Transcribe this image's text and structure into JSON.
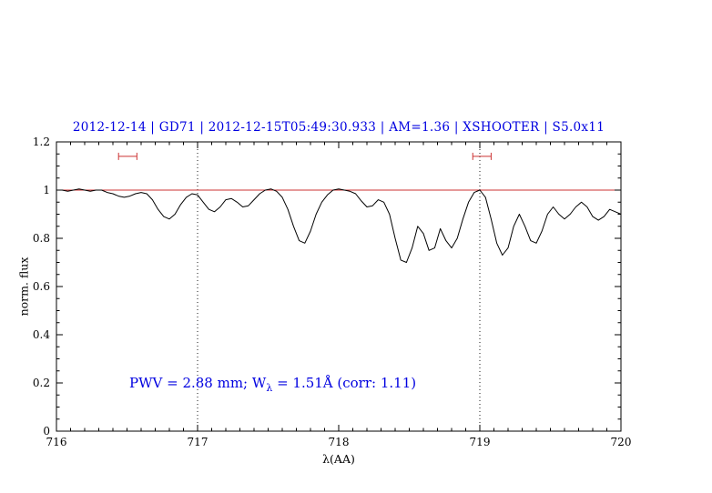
{
  "colors": {
    "title": "#0000e0",
    "annotation": "#0000e0",
    "spectrum": "#000000",
    "continuum": "#cc3333",
    "marker": "#cc3333",
    "axis": "#000000"
  },
  "annotation": {
    "part1": "PWV = 2.88 mm; W",
    "sub": "λ",
    "part2": " = 1.51Å (corr: 1.11)"
  },
  "chart_data": {
    "type": "line",
    "title": "2012-12-14 | GD71 | 2012-12-15T05:49:30.933 | AM=1.36 | XSHOOTER | S5.0x11",
    "xlabel": "λ(AA)",
    "ylabel": "norm. flux",
    "xlim": [
      716,
      720
    ],
    "ylim": [
      0,
      1.2
    ],
    "x_ticks": [
      716,
      717,
      718,
      719,
      720
    ],
    "x_tick_labels": [
      "716",
      "717",
      "718",
      "719",
      "720"
    ],
    "x_minor_step": 0.1,
    "y_ticks": [
      0,
      0.2,
      0.4,
      0.6,
      0.8,
      1,
      1.2
    ],
    "y_tick_labels": [
      "0",
      "0.2",
      "0.4",
      "0.6",
      "0.8",
      "1",
      "1.2"
    ],
    "y_minor_step": 0.05,
    "grid": false,
    "legend": "none",
    "series_name": "normalized telluric spectrum",
    "x": [
      716.0,
      716.04,
      716.08,
      716.12,
      716.16,
      716.2,
      716.24,
      716.28,
      716.32,
      716.36,
      716.4,
      716.44,
      716.48,
      716.52,
      716.56,
      716.6,
      716.64,
      716.68,
      716.72,
      716.76,
      716.8,
      716.84,
      716.88,
      716.92,
      716.96,
      717.0,
      717.04,
      717.08,
      717.12,
      717.16,
      717.2,
      717.24,
      717.28,
      717.32,
      717.36,
      717.4,
      717.44,
      717.48,
      717.52,
      717.56,
      717.6,
      717.64,
      717.68,
      717.72,
      717.76,
      717.8,
      717.84,
      717.88,
      717.92,
      717.96,
      718.0,
      718.04,
      718.08,
      718.12,
      718.16,
      718.2,
      718.24,
      718.28,
      718.32,
      718.36,
      718.4,
      718.44,
      718.48,
      718.52,
      718.56,
      718.6,
      718.64,
      718.68,
      718.72,
      718.76,
      718.8,
      718.84,
      718.88,
      718.92,
      718.96,
      719.0,
      719.04,
      719.08,
      719.12,
      719.16,
      719.2,
      719.24,
      719.28,
      719.32,
      719.36,
      719.4,
      719.44,
      719.48,
      719.52,
      719.56,
      719.6,
      719.64,
      719.68,
      719.72,
      719.76,
      719.8,
      719.84,
      719.88,
      719.92,
      719.96,
      720.0
    ],
    "flux": [
      1.0,
      1.0,
      0.995,
      1.0,
      1.005,
      1.0,
      0.995,
      1.0,
      1.0,
      0.99,
      0.985,
      0.975,
      0.97,
      0.975,
      0.985,
      0.99,
      0.985,
      0.96,
      0.92,
      0.89,
      0.88,
      0.9,
      0.94,
      0.97,
      0.985,
      0.98,
      0.95,
      0.92,
      0.91,
      0.93,
      0.96,
      0.965,
      0.95,
      0.93,
      0.935,
      0.96,
      0.985,
      1.0,
      1.005,
      0.995,
      0.97,
      0.92,
      0.85,
      0.79,
      0.78,
      0.83,
      0.9,
      0.95,
      0.98,
      1.0,
      1.005,
      1.0,
      0.995,
      0.985,
      0.955,
      0.93,
      0.935,
      0.96,
      0.95,
      0.9,
      0.8,
      0.71,
      0.7,
      0.76,
      0.85,
      0.82,
      0.75,
      0.76,
      0.84,
      0.79,
      0.76,
      0.8,
      0.88,
      0.95,
      0.99,
      1.0,
      0.97,
      0.88,
      0.78,
      0.73,
      0.76,
      0.85,
      0.9,
      0.85,
      0.79,
      0.78,
      0.83,
      0.9,
      0.93,
      0.9,
      0.88,
      0.9,
      0.93,
      0.95,
      0.93,
      0.89,
      0.875,
      0.89,
      0.92,
      0.91,
      0.9
    ],
    "continuum_y": 1.0,
    "dotted_lines_x": [
      717,
      719
    ],
    "markers": [
      {
        "x1": 716.44,
        "x2": 716.57,
        "y": 1.14
      },
      {
        "x1": 718.95,
        "x2": 719.08,
        "y": 1.14
      }
    ],
    "annotation_text": "PWV = 2.88 mm; W_λ = 1.51Å (corr: 1.11)"
  }
}
